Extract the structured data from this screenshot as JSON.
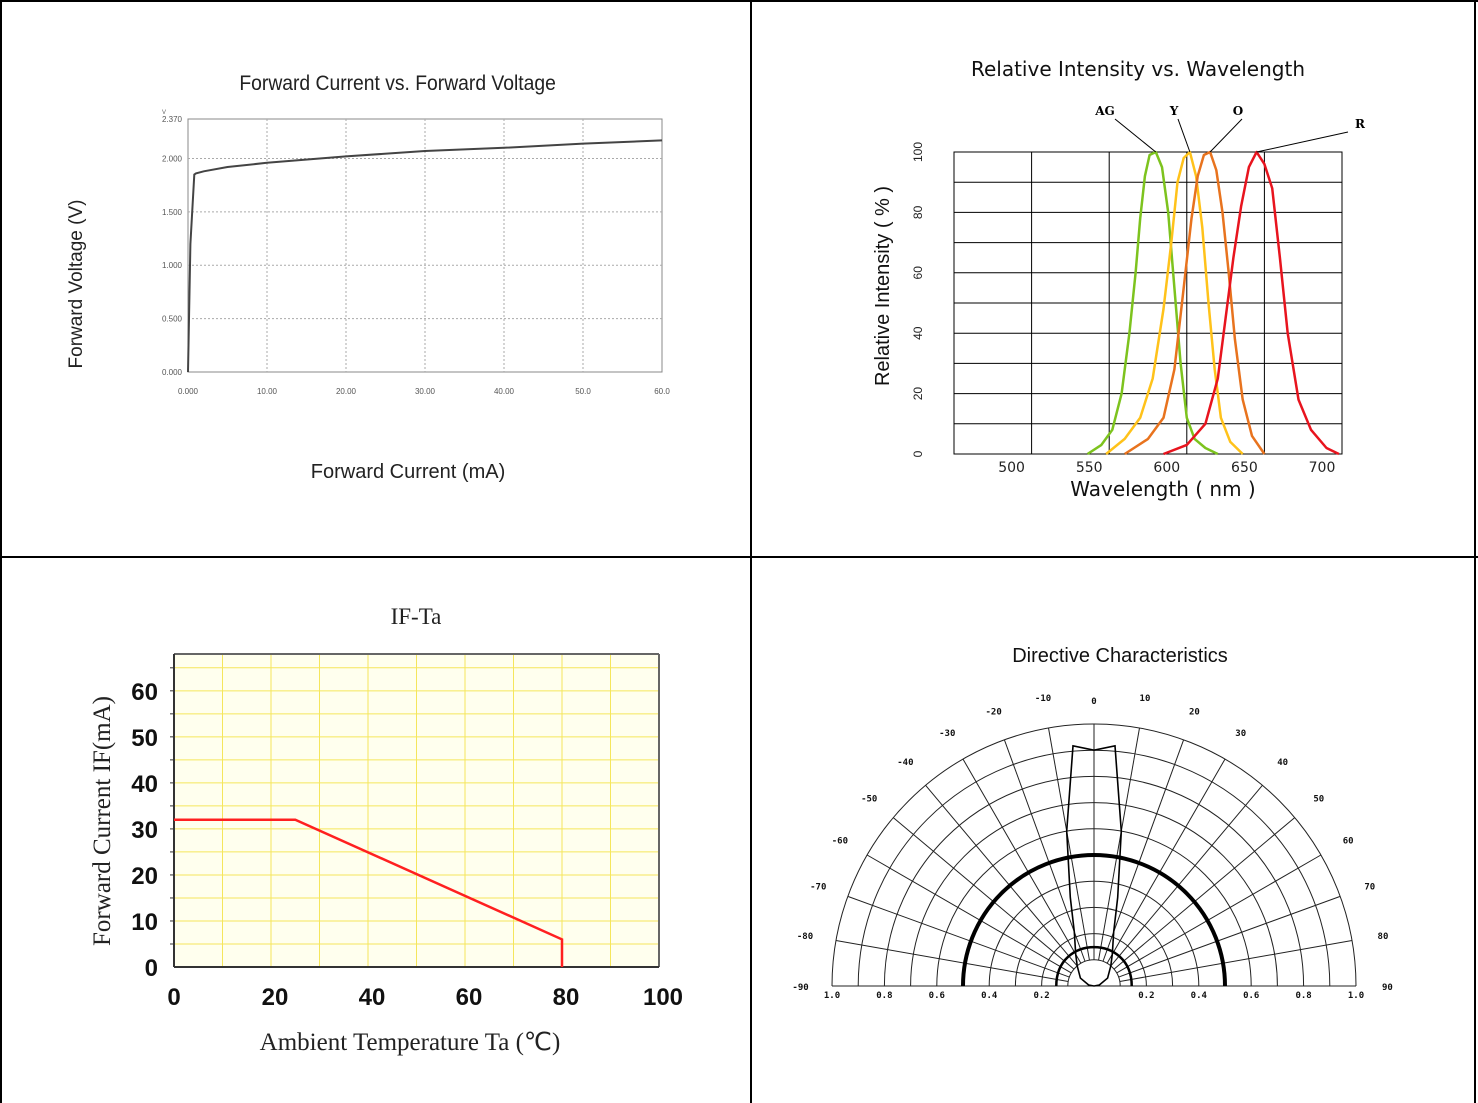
{
  "charts": {
    "fv": {
      "title": "Forward Current vs. Forward Voltage",
      "xlabel": "Forward Current (mA)",
      "ylabel": "Forward Voltage (V)",
      "yunit_small": "V",
      "ytick_labels": [
        "2.370",
        "2.000",
        "1.500",
        "1.000",
        "0.500",
        "0.000"
      ],
      "xtick_labels": [
        "0.000",
        "10.00",
        "20.00",
        "30.00",
        "40.00",
        "50.0",
        "60.0"
      ]
    },
    "spec": {
      "title": "Relative Intensity vs. Wavelength",
      "xlabel": "Wavelength ( nm )",
      "ylabel": "Relative Intensity ( % )",
      "ytick_labels": [
        "0",
        "20",
        "40",
        "60",
        "80",
        "100"
      ],
      "xtick_labels": [
        "500",
        "550",
        "600",
        "650",
        "700"
      ],
      "curve_labels": [
        "AG",
        "Y",
        "O",
        "R"
      ]
    },
    "ifta": {
      "title": "IF-Ta",
      "xlabel": "Ambient Temperature Ta (℃)",
      "ylabel": "Forward Current IF(mA)",
      "ytick_labels": [
        "0",
        "10",
        "20",
        "30",
        "40",
        "50",
        "60"
      ],
      "xtick_labels": [
        "0",
        "20",
        "40",
        "60",
        "80",
        "100"
      ]
    },
    "dir": {
      "title": "Directive Characteristics",
      "angle_labels_left": [
        "-10",
        "-20",
        "-30",
        "-40",
        "-50",
        "-60",
        "-70",
        "-80",
        "-90"
      ],
      "angle_labels_right": [
        "10",
        "20",
        "30",
        "40",
        "50",
        "60",
        "70",
        "80",
        "90"
      ],
      "angle_zero": "0",
      "radial_labels": [
        "1.0",
        "0.8",
        "0.6",
        "0.4",
        "0.2",
        "0.2",
        "0.4",
        "0.6",
        "0.8",
        "1.0"
      ]
    }
  },
  "chart_data": [
    {
      "type": "line",
      "title": "Forward Current vs. Forward Voltage",
      "xlabel": "Forward Current (mA)",
      "ylabel": "Forward Voltage (V)",
      "xlim": [
        0,
        60
      ],
      "ylim": [
        0,
        2.37
      ],
      "grid": true,
      "series": [
        {
          "x": [
            0,
            0.3,
            0.8,
            1,
            2,
            5,
            10,
            20,
            30,
            40,
            50,
            60
          ],
          "y": [
            0,
            1.2,
            1.85,
            1.86,
            1.88,
            1.92,
            1.96,
            2.02,
            2.07,
            2.1,
            2.14,
            2.17
          ]
        }
      ]
    },
    {
      "type": "line",
      "title": "Relative Intensity vs. Wavelength",
      "xlabel": "Wavelength ( nm )",
      "ylabel": "Relative Intensity ( % )",
      "xlim": [
        450,
        700
      ],
      "ylim": [
        0,
        100
      ],
      "grid": true,
      "series": [
        {
          "name": "AG",
          "color": "#7dc31e",
          "x": [
            536,
            545,
            552,
            558,
            563,
            567,
            570,
            573,
            576,
            580,
            584,
            588,
            592,
            596,
            600,
            605,
            612,
            620
          ],
          "y": [
            0,
            3,
            8,
            20,
            40,
            60,
            78,
            92,
            99,
            100,
            95,
            80,
            55,
            30,
            12,
            5,
            2,
            0
          ]
        },
        {
          "name": "Y",
          "color": "#ffc21a",
          "x": [
            548,
            560,
            570,
            578,
            585,
            590,
            594,
            598,
            602,
            606,
            610,
            614,
            618,
            622,
            628,
            636
          ],
          "y": [
            0,
            5,
            12,
            25,
            48,
            70,
            90,
            98,
            100,
            92,
            75,
            50,
            28,
            12,
            4,
            0
          ]
        },
        {
          "name": "O",
          "color": "#e8731e",
          "x": [
            560,
            575,
            585,
            592,
            598,
            603,
            607,
            611,
            615,
            619,
            623,
            627,
            631,
            636,
            642,
            650
          ],
          "y": [
            0,
            5,
            12,
            28,
            55,
            78,
            92,
            99,
            100,
            94,
            80,
            60,
            38,
            18,
            6,
            0
          ]
        },
        {
          "name": "R",
          "color": "#e8141e",
          "x": [
            585,
            600,
            612,
            620,
            625,
            630,
            635,
            640,
            645,
            650,
            655,
            660,
            665,
            672,
            680,
            690,
            698
          ],
          "y": [
            0,
            3,
            10,
            25,
            45,
            65,
            82,
            95,
            100,
            96,
            88,
            65,
            40,
            18,
            8,
            2,
            0
          ]
        }
      ]
    },
    {
      "type": "line",
      "title": "IF-Ta",
      "xlabel": "Ambient Temperature Ta (℃)",
      "ylabel": "Forward Current IF(mA)",
      "xlim": [
        0,
        100
      ],
      "ylim": [
        0,
        65
      ],
      "grid": true,
      "series": [
        {
          "color": "#ff2020",
          "x": [
            0,
            25,
            80,
            80
          ],
          "y": [
            32,
            32,
            6,
            0
          ]
        }
      ]
    },
    {
      "type": "scatter",
      "title": "Directive Characteristics",
      "angle_range": [
        -90,
        90
      ],
      "radial_range": [
        0,
        1
      ],
      "series": [
        {
          "angle": [
            -90,
            -60,
            -30,
            0,
            30,
            60,
            90
          ],
          "radius": [
            0.5,
            0.5,
            0.5,
            0.5,
            0.5,
            0.5,
            0.5
          ]
        },
        {
          "angle": [
            -90,
            -80,
            -60,
            -40,
            -30,
            -20,
            -15,
            -10,
            -5,
            0,
            5,
            10,
            15,
            20,
            30,
            40,
            60,
            80,
            90
          ],
          "radius": [
            0,
            0.02,
            0.06,
            0.1,
            0.14,
            0.22,
            0.35,
            0.6,
            0.92,
            0.9,
            0.92,
            0.6,
            0.35,
            0.22,
            0.14,
            0.1,
            0.06,
            0.02,
            0
          ]
        }
      ]
    }
  ]
}
